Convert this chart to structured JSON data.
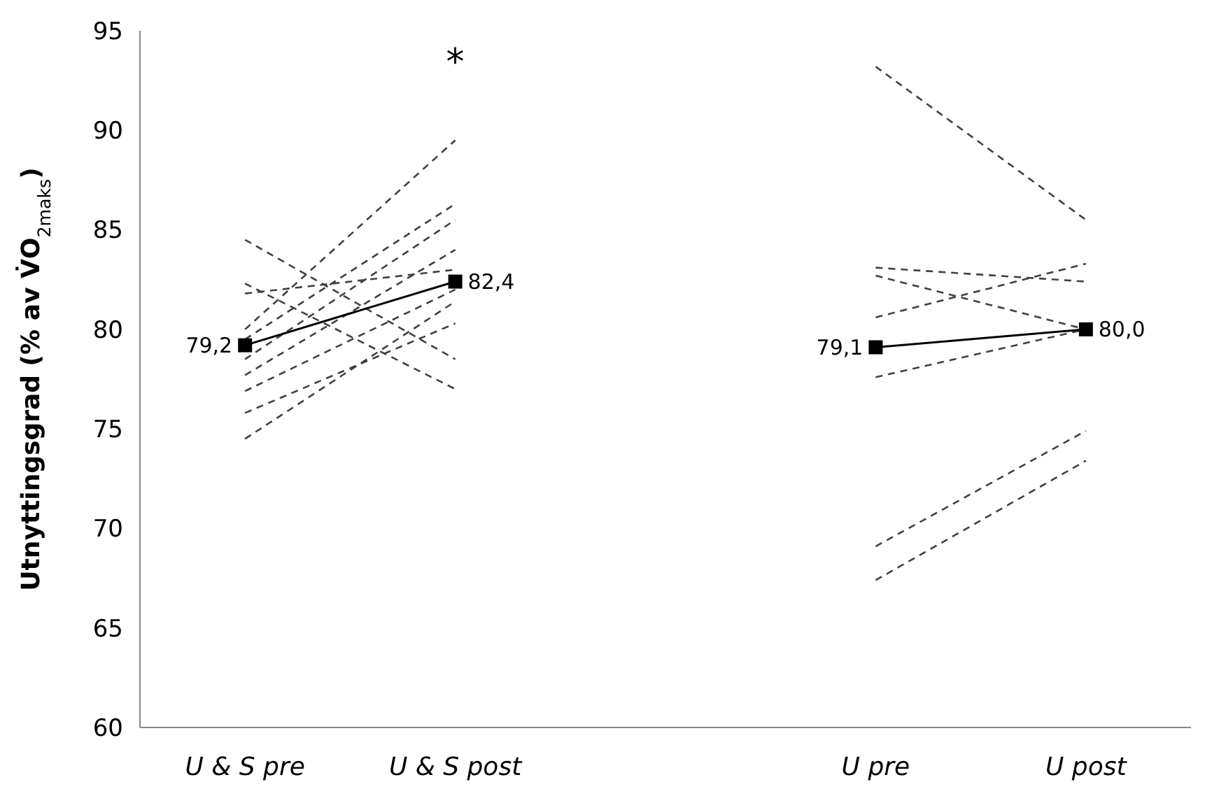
{
  "chart_data": {
    "type": "line",
    "ylabel": "Utnyttingsgrad (% av V̇O$_{2maks}$)",
    "categories": [
      "U & S pre",
      "U & S post",
      null,
      "U pre",
      "U post"
    ],
    "ylim": [
      60,
      95
    ],
    "yticks": [
      60,
      65,
      70,
      75,
      80,
      85,
      90,
      95
    ],
    "grid": false,
    "series": [
      {
        "color": "#404040",
        "line_style": "dashed",
        "marker": "none",
        "values": [
          84.5,
          78.5,
          null,
          null,
          null
        ]
      },
      {
        "color": "#404040",
        "line_style": "dashed",
        "marker": "none",
        "values": [
          82.3,
          77.0,
          null,
          null,
          null
        ]
      },
      {
        "color": "#404040",
        "line_style": "dashed",
        "marker": "none",
        "values": [
          81.8,
          83.0,
          null,
          null,
          null
        ]
      },
      {
        "color": "#404040",
        "line_style": "dashed",
        "marker": "none",
        "values": [
          80.0,
          89.5,
          null,
          null,
          null
        ]
      },
      {
        "color": "#404040",
        "line_style": "dashed",
        "marker": "none",
        "values": [
          79.5,
          86.3,
          null,
          null,
          null
        ]
      },
      {
        "color": "#404040",
        "line_style": "dashed",
        "marker": "none",
        "values": [
          78.5,
          85.5,
          null,
          null,
          null
        ]
      },
      {
        "color": "#404040",
        "line_style": "dashed",
        "marker": "none",
        "values": [
          77.7,
          84.0,
          null,
          null,
          null
        ]
      },
      {
        "color": "#404040",
        "line_style": "dashed",
        "marker": "none",
        "values": [
          76.9,
          82.0,
          null,
          null,
          null
        ]
      },
      {
        "color": "#404040",
        "line_style": "dashed",
        "marker": "none",
        "values": [
          75.8,
          80.3,
          null,
          null,
          null
        ]
      },
      {
        "color": "#404040",
        "line_style": "dashed",
        "marker": "none",
        "values": [
          74.5,
          81.4,
          null,
          null,
          null
        ]
      },
      {
        "color": "#404040",
        "line_style": "dashed",
        "marker": "none",
        "values": [
          null,
          null,
          null,
          93.2,
          85.5
        ]
      },
      {
        "color": "#404040",
        "line_style": "dashed",
        "marker": "none",
        "values": [
          null,
          null,
          null,
          83.1,
          82.4
        ]
      },
      {
        "color": "#404040",
        "line_style": "dashed",
        "marker": "none",
        "values": [
          null,
          null,
          null,
          82.7,
          80.0
        ]
      },
      {
        "color": "#404040",
        "line_style": "dashed",
        "marker": "none",
        "values": [
          null,
          null,
          null,
          80.6,
          83.3
        ]
      },
      {
        "color": "#404040",
        "line_style": "dashed",
        "marker": "none",
        "values": [
          null,
          null,
          null,
          77.6,
          80.0
        ]
      },
      {
        "color": "#404040",
        "line_style": "dashed",
        "marker": "none",
        "values": [
          null,
          null,
          null,
          69.1,
          74.9
        ]
      },
      {
        "color": "#404040",
        "line_style": "dashed",
        "marker": "none",
        "values": [
          null,
          null,
          null,
          67.4,
          73.4
        ]
      },
      {
        "color": "#000000",
        "line_style": "solid",
        "marker": "square",
        "values": [
          79.2,
          82.4,
          null,
          79.1,
          80.0
        ],
        "value_labels": [
          "79,2",
          "82,4",
          null,
          "79,1",
          "80,0"
        ]
      }
    ],
    "annotations": [
      "*"
    ]
  }
}
